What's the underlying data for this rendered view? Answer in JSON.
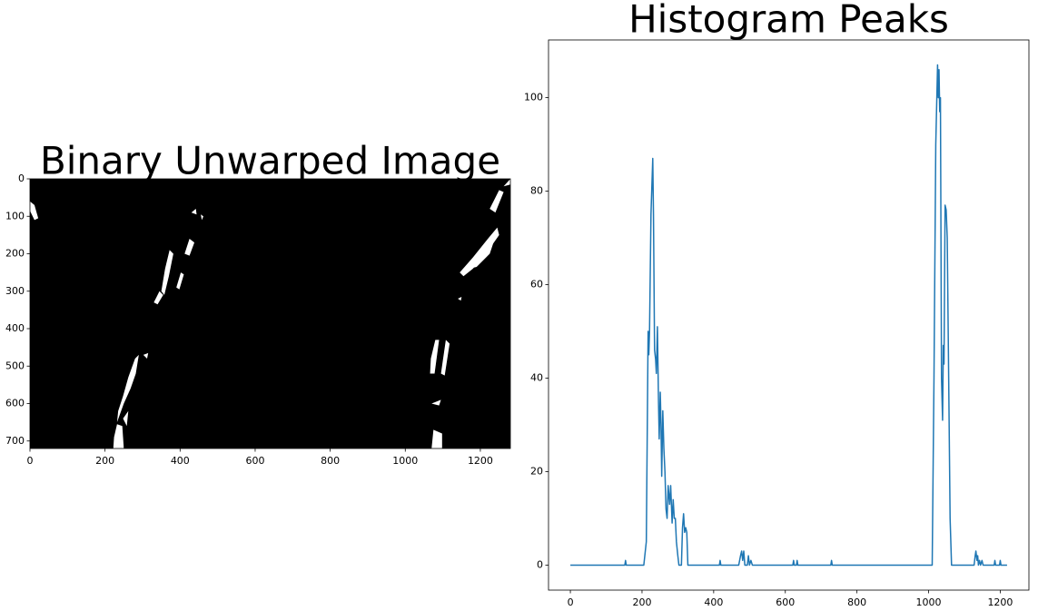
{
  "chart_data": [
    {
      "type": "image",
      "title": "Binary Unwarped Image",
      "xlim": [
        0,
        1280
      ],
      "ylim": [
        720,
        0
      ],
      "xticks": [
        0,
        200,
        400,
        600,
        800,
        1000,
        1200
      ],
      "yticks": [
        0,
        100,
        200,
        300,
        400,
        500,
        600,
        700
      ]
    },
    {
      "type": "line",
      "title": "Histogram Peaks",
      "color": "#1f77b4",
      "xlim": [
        -61,
        1280
      ],
      "ylim": [
        -5.35,
        112.35
      ],
      "xticks": [
        0,
        200,
        400,
        600,
        800,
        1000,
        1200
      ],
      "yticks": [
        0,
        20,
        40,
        60,
        80,
        100
      ],
      "x": [
        0,
        152,
        154,
        156,
        205,
        212,
        217,
        219,
        221,
        225,
        230,
        232,
        235,
        238,
        240,
        243,
        246,
        248,
        251,
        253,
        255,
        258,
        261,
        264,
        267,
        270,
        273,
        277,
        280,
        284,
        287,
        290,
        293,
        296,
        300,
        303,
        310,
        313,
        316,
        319,
        322,
        325,
        328,
        416,
        418,
        420,
        470,
        475,
        478,
        481,
        484,
        487,
        494,
        497,
        500,
        504,
        508,
        621,
        623,
        625,
        631,
        633,
        635,
        727,
        729,
        731,
        1010,
        1015,
        1020,
        1025,
        1027,
        1029,
        1031,
        1033,
        1036,
        1039,
        1041,
        1043,
        1046,
        1049,
        1052,
        1056,
        1060,
        1064,
        1127,
        1130,
        1132,
        1135,
        1137,
        1139,
        1142,
        1145,
        1149,
        1152,
        1183,
        1185,
        1187,
        1198,
        1200,
        1202,
        1219
      ],
      "values": [
        0,
        0,
        1,
        0,
        0,
        5,
        50,
        45,
        50,
        75,
        87,
        75,
        46,
        44,
        41,
        51,
        35,
        27,
        37,
        30,
        19,
        33,
        25,
        20,
        12,
        10,
        17,
        13,
        17,
        9,
        14,
        10,
        10,
        5,
        2,
        0,
        0,
        8,
        11,
        7,
        8,
        7,
        0,
        0,
        1,
        0,
        0,
        2,
        3,
        1,
        3,
        0,
        0,
        2,
        0,
        1,
        0,
        0,
        1,
        0,
        0,
        1,
        0,
        0,
        1,
        0,
        0,
        40,
        90,
        107,
        100,
        106,
        97,
        100,
        40,
        31,
        47,
        43,
        77,
        76,
        70,
        40,
        10,
        0,
        0,
        2,
        3,
        1,
        2,
        0,
        1,
        0,
        1,
        0,
        0,
        1,
        0,
        0,
        1,
        0,
        0
      ]
    }
  ]
}
